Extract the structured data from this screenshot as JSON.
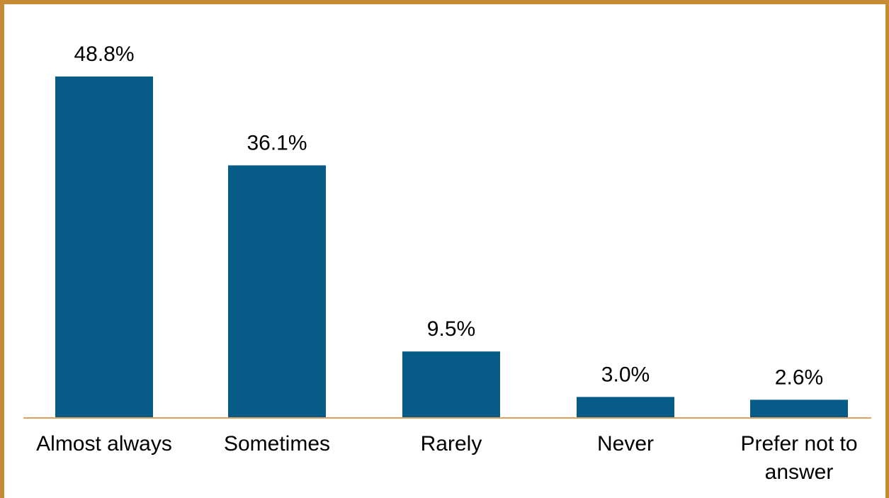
{
  "chart_data": {
    "type": "bar",
    "title": "",
    "xlabel": "",
    "ylabel": "",
    "categories": [
      [
        "Almost always"
      ],
      [
        "Sometimes"
      ],
      [
        "Rarely"
      ],
      [
        "Never"
      ],
      [
        "Prefer not to",
        "answer"
      ]
    ],
    "values": [
      48.8,
      36.1,
      9.5,
      3.0,
      2.6
    ],
    "value_labels": [
      "48.8%",
      "36.1%",
      "9.5%",
      "3.0%",
      "2.6%"
    ],
    "ylim": [
      0,
      48.8
    ],
    "grid": false,
    "legend": "none"
  },
  "colors": {
    "bar": "#075b87",
    "axis": "#e0a060",
    "frame": "#c98a35"
  }
}
